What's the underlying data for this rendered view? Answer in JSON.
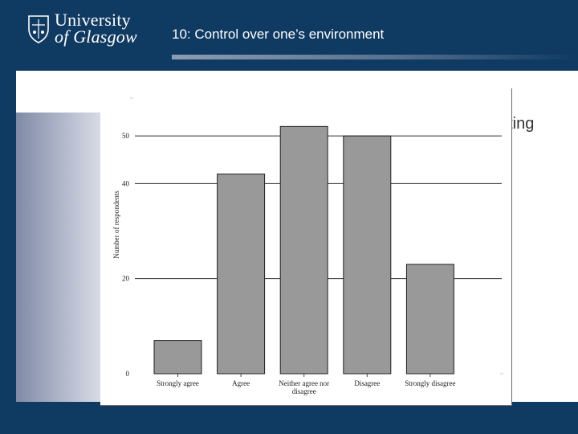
{
  "header": {
    "logo_line1": "University",
    "logo_line2": "of Glasgow",
    "slide_title": "10: Control over one’s environment"
  },
  "background_text": "ecting",
  "colors": {
    "frame": "#0f3a62",
    "bar_fill": "#999999",
    "bar_stroke": "#222222"
  },
  "chart_data": {
    "type": "bar",
    "title": "",
    "xlabel": "",
    "ylabel": "Number of respondents",
    "ylim": [
      0,
      60
    ],
    "yticks": [
      0,
      20,
      40,
      50
    ],
    "grid": true,
    "categories": [
      "Strongly agree",
      "Agree",
      "Neither agree nor disagree",
      "Disagree",
      "Strongly disagree"
    ],
    "values": [
      7,
      42,
      52,
      50,
      23
    ]
  }
}
